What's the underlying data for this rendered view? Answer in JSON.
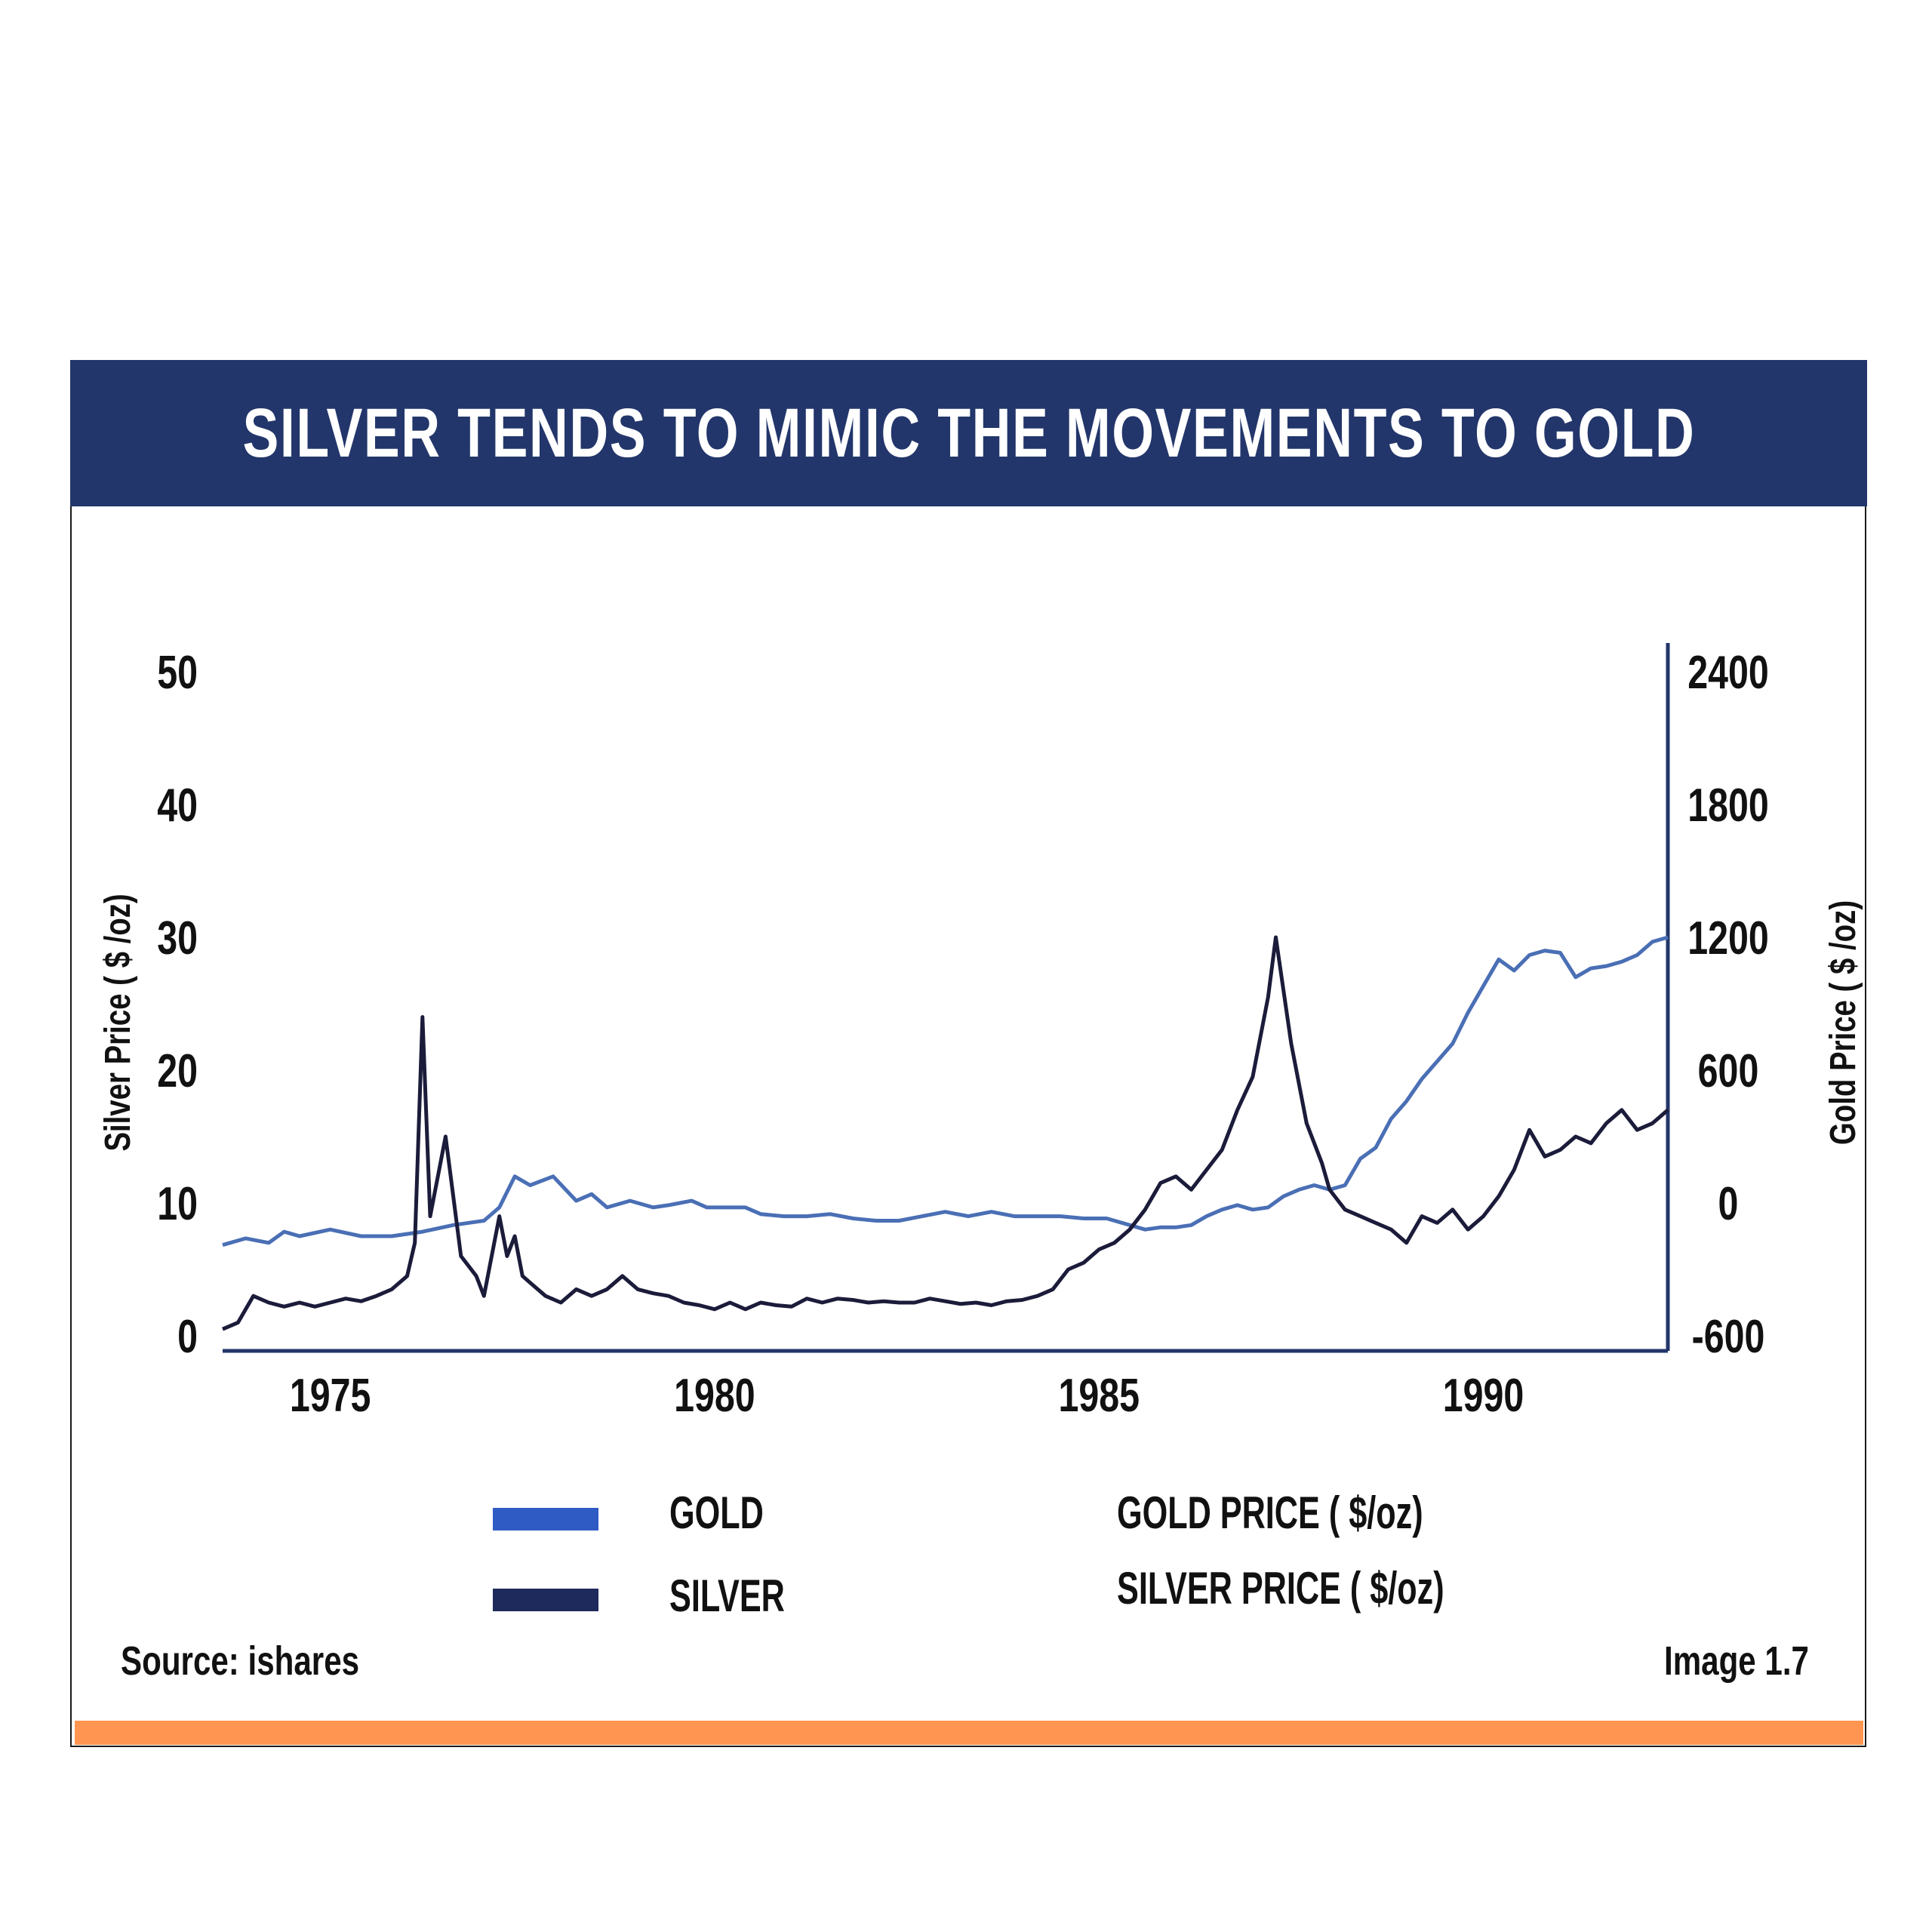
{
  "header": {
    "title": "SILVER TENDS TO MIMIC THE MOVEMENTS TO GOLD"
  },
  "legend": {
    "items": [
      {
        "name": "GOLD",
        "description": "GOLD PRICE ( $/oz)",
        "color": "#2f5bc4"
      },
      {
        "name": "SILVER",
        "description": "SILVER PRICE ( $/oz)",
        "color": "#1f2a5c"
      }
    ]
  },
  "footer": {
    "source": "Source: ishares",
    "image_label": "Image 1.7"
  },
  "colors": {
    "header_bg": "#23366b",
    "accent_bottom": "#ff9551",
    "gold_line": "#4a6fb5",
    "silver_line": "#1b1b3a"
  },
  "chart_data": {
    "type": "line",
    "title": "SILVER TENDS TO MIMIC THE MOVEMENTS TO GOLD",
    "xlabel": "",
    "y_left_label": "Silver Price ( $ /oz)",
    "y_right_label": "Gold  Price ( $ /oz)",
    "x_ticks": [
      "1975",
      "1980",
      "1985",
      "1990"
    ],
    "x_tick_values": [
      1975,
      1980,
      1985,
      1990
    ],
    "y_left_ticks": [
      "0",
      "10",
      "20",
      "30",
      "40",
      "50"
    ],
    "y_left_tick_values": [
      0,
      10,
      20,
      30,
      40,
      50
    ],
    "y_right_ticks": [
      "-600",
      "0",
      "600",
      "1200",
      "1800",
      "2400"
    ],
    "y_right_tick_values": [
      -600,
      0,
      600,
      1200,
      1800,
      2400
    ],
    "xlim": [
      1973.6,
      1992.4
    ],
    "ylim_left": [
      0,
      50
    ],
    "ylim_right": [
      -600,
      2400
    ],
    "grid": false,
    "series": [
      {
        "name": "GOLD",
        "axis": "right",
        "x": [
          1973.6,
          1973.9,
          1974.2,
          1974.4,
          1974.6,
          1975.0,
          1975.4,
          1975.8,
          1976.2,
          1976.6,
          1977.0,
          1977.2,
          1977.4,
          1977.6,
          1977.9,
          1978.2,
          1978.4,
          1978.6,
          1978.9,
          1979.2,
          1979.4,
          1979.7,
          1979.9,
          1980.2,
          1980.4,
          1980.6,
          1980.9,
          1981.2,
          1981.5,
          1981.8,
          1982.1,
          1982.4,
          1982.7,
          1983.0,
          1983.3,
          1983.6,
          1983.9,
          1984.2,
          1984.5,
          1984.8,
          1985.1,
          1985.4,
          1985.6,
          1985.8,
          1986.0,
          1986.2,
          1986.4,
          1986.6,
          1986.8,
          1987.0,
          1987.2,
          1987.4,
          1987.6,
          1987.8,
          1988.0,
          1988.2,
          1988.4,
          1988.6,
          1988.8,
          1989.0,
          1989.2,
          1989.4,
          1989.6,
          1989.8,
          1990.0,
          1990.2,
          1990.4,
          1990.6,
          1990.8,
          1991.0,
          1991.2,
          1991.4,
          1991.6,
          1991.8,
          1992.0,
          1992.2,
          1992.4
        ],
        "values": [
          -190,
          -160,
          -180,
          -130,
          -150,
          -120,
          -150,
          -150,
          -130,
          -100,
          -80,
          -20,
          120,
          80,
          120,
          10,
          40,
          -20,
          10,
          -20,
          -10,
          10,
          -20,
          -20,
          -20,
          -50,
          -60,
          -60,
          -50,
          -70,
          -80,
          -80,
          -60,
          -40,
          -60,
          -40,
          -60,
          -60,
          -60,
          -70,
          -70,
          -100,
          -120,
          -110,
          -110,
          -100,
          -60,
          -30,
          -10,
          -30,
          -20,
          30,
          60,
          80,
          60,
          80,
          200,
          250,
          380,
          460,
          560,
          640,
          720,
          860,
          980,
          1100,
          1050,
          1120,
          1140,
          1130,
          1020,
          1060,
          1070,
          1090,
          1120,
          1180,
          1200
        ]
      },
      {
        "name": "SILVER",
        "axis": "left",
        "x": [
          1973.6,
          1973.8,
          1974.0,
          1974.2,
          1974.4,
          1974.6,
          1974.8,
          1975.0,
          1975.2,
          1975.4,
          1975.6,
          1975.8,
          1976.0,
          1976.1,
          1976.2,
          1976.3,
          1976.5,
          1976.7,
          1976.9,
          1977.0,
          1977.2,
          1977.3,
          1977.4,
          1977.5,
          1977.6,
          1977.8,
          1978.0,
          1978.2,
          1978.4,
          1978.6,
          1978.8,
          1979.0,
          1979.2,
          1979.4,
          1979.6,
          1979.8,
          1980.0,
          1980.2,
          1980.4,
          1980.6,
          1980.8,
          1981.0,
          1981.2,
          1981.4,
          1981.6,
          1981.8,
          1982.0,
          1982.2,
          1982.4,
          1982.6,
          1982.8,
          1983.0,
          1983.2,
          1983.4,
          1983.6,
          1983.8,
          1984.0,
          1984.2,
          1984.4,
          1984.6,
          1984.8,
          1985.0,
          1985.2,
          1985.4,
          1985.6,
          1985.8,
          1986.0,
          1986.2,
          1986.4,
          1986.6,
          1986.8,
          1987.0,
          1987.2,
          1987.3,
          1987.5,
          1987.7,
          1987.9,
          1988.0,
          1988.2,
          1988.4,
          1988.6,
          1988.8,
          1989.0,
          1989.2,
          1989.4,
          1989.6,
          1989.8,
          1990.0,
          1990.2,
          1990.4,
          1990.6,
          1990.8,
          1991.0,
          1991.2,
          1991.4,
          1991.6,
          1991.8,
          1992.0,
          1992.2,
          1992.4
        ],
        "values": [
          0.5,
          1.0,
          3.0,
          2.5,
          2.2,
          2.5,
          2.2,
          2.5,
          2.8,
          2.6,
          3.0,
          3.5,
          4.5,
          7.0,
          24.0,
          9.0,
          15.0,
          6.0,
          4.5,
          3.0,
          9.0,
          6.0,
          7.5,
          4.5,
          4.0,
          3.0,
          2.5,
          3.5,
          3.0,
          3.5,
          4.5,
          3.5,
          3.2,
          3.0,
          2.5,
          2.3,
          2.0,
          2.5,
          2.0,
          2.5,
          2.3,
          2.2,
          2.8,
          2.5,
          2.8,
          2.7,
          2.5,
          2.6,
          2.5,
          2.5,
          2.8,
          2.6,
          2.4,
          2.5,
          2.3,
          2.6,
          2.7,
          3.0,
          3.5,
          5.0,
          5.5,
          6.5,
          7.0,
          8.0,
          9.5,
          11.5,
          12.0,
          11.0,
          12.5,
          14.0,
          17.0,
          19.5,
          25.5,
          30.0,
          22.0,
          16.0,
          13.0,
          11.0,
          9.5,
          9.0,
          8.5,
          8.0,
          7.0,
          9.0,
          8.5,
          9.5,
          8.0,
          9.0,
          10.5,
          12.5,
          15.5,
          13.5,
          14.0,
          15.0,
          14.5,
          16.0,
          17.0,
          15.5,
          16.0,
          17.0
        ]
      }
    ]
  }
}
